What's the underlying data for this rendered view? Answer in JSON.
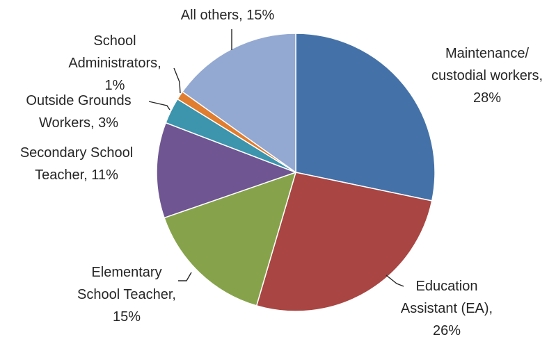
{
  "chart_data": {
    "type": "pie",
    "slices": [
      {
        "name": "Maintenance/ custodial workers",
        "value": 28,
        "label_lines": [
          "Maintenance/",
          "custodial workers,",
          "28%"
        ],
        "color": "#4472a8"
      },
      {
        "name": "Education Assistant (EA)",
        "value": 26,
        "label_lines": [
          "Education",
          "Assistant (EA),",
          "26%"
        ],
        "color": "#a94542"
      },
      {
        "name": "Elementary School Teacher",
        "value": 15,
        "label_lines": [
          "Elementary",
          "School Teacher,",
          "15%"
        ],
        "color": "#86a34b"
      },
      {
        "name": "Secondary School Teacher",
        "value": 11,
        "label_lines": [
          "Secondary School",
          "Teacher, 11%"
        ],
        "color": "#6f5592"
      },
      {
        "name": "Outside Grounds Workers",
        "value": 3,
        "label_lines": [
          "Outside Grounds",
          "Workers, 3%"
        ],
        "color": "#3c95ad"
      },
      {
        "name": "School Administrators",
        "value": 1,
        "label_lines": [
          "School",
          "Administrators,",
          "1%"
        ],
        "color": "#e07d2e"
      },
      {
        "name": "All others",
        "value": 15,
        "label_lines": [
          "All others, 15%"
        ],
        "color": "#93a9d2"
      }
    ],
    "start": "12 o'clock",
    "direction": "clockwise",
    "legend": "none"
  }
}
